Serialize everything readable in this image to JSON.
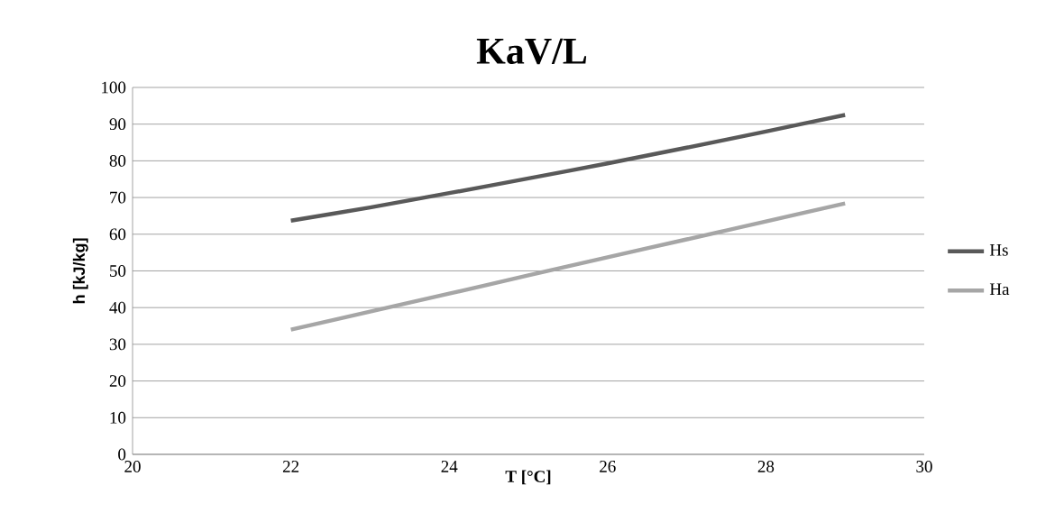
{
  "chart_data": {
    "type": "line",
    "title": "KaV/L",
    "xlabel": "T [°C]",
    "ylabel": "h [kJ/kg]",
    "xlim": [
      20,
      30
    ],
    "xticks": [
      20,
      22,
      24,
      26,
      28,
      30
    ],
    "ylim": [
      0,
      100
    ],
    "yticks": [
      0,
      10,
      20,
      30,
      40,
      50,
      60,
      70,
      80,
      90,
      100
    ],
    "grid": "y",
    "legend": "right",
    "marker": "none",
    "line_style": "solid",
    "x": [
      22,
      23,
      24,
      25,
      26,
      27,
      28,
      29
    ],
    "series": [
      {
        "name": "Hs",
        "color": "#595959",
        "values": [
          63.7,
          67.3,
          71.2,
          75.2,
          79.3,
          83.6,
          88.0,
          92.5
        ]
      },
      {
        "name": "Ha",
        "color": "#a6a6a6",
        "values": [
          34.0,
          38.9,
          43.8,
          48.8,
          53.7,
          58.6,
          63.5,
          68.4
        ]
      }
    ]
  }
}
